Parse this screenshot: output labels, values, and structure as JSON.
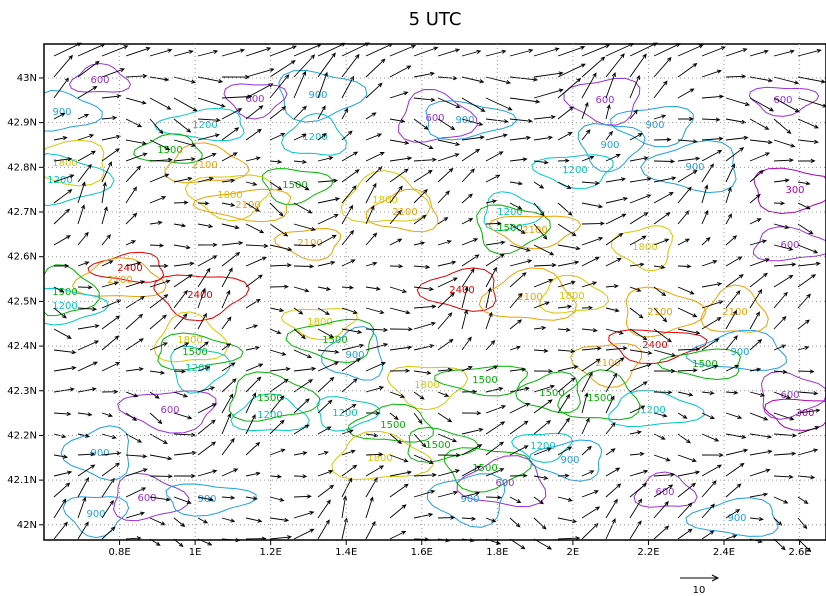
{
  "chart_data": {
    "type": "vector_map",
    "title": "5 UTC",
    "xlim": [
      0.6,
      2.67
    ],
    "ylim": [
      41.966,
      43.076
    ],
    "xticks": [
      {
        "value": 0.8,
        "label": "0.8E"
      },
      {
        "value": 1.0,
        "label": "1E"
      },
      {
        "value": 1.2,
        "label": "1.2E"
      },
      {
        "value": 1.4,
        "label": "1.4E"
      },
      {
        "value": 1.6,
        "label": "1.6E"
      },
      {
        "value": 1.8,
        "label": "1.8E"
      },
      {
        "value": 2.0,
        "label": "2E"
      },
      {
        "value": 2.2,
        "label": "2.2E"
      },
      {
        "value": 2.4,
        "label": "2.4E"
      },
      {
        "value": 2.6,
        "label": "2.6E"
      }
    ],
    "yticks": [
      {
        "value": 42.0,
        "label": "42N"
      },
      {
        "value": 42.1,
        "label": "42.1N"
      },
      {
        "value": 42.2,
        "label": "42.2N"
      },
      {
        "value": 42.3,
        "label": "42.3N"
      },
      {
        "value": 42.4,
        "label": "42.4N"
      },
      {
        "value": 42.5,
        "label": "42.5N"
      },
      {
        "value": 42.6,
        "label": "42.6N"
      },
      {
        "value": 42.7,
        "label": "42.7N"
      },
      {
        "value": 42.8,
        "label": "42.8N"
      },
      {
        "value": 42.9,
        "label": "42.9N"
      },
      {
        "value": 43.0,
        "label": "43N"
      }
    ],
    "grid": true,
    "contour_levels": [
      {
        "value": 300,
        "color": "#b000b0"
      },
      {
        "value": 600,
        "color": "#9a30d8"
      },
      {
        "value": 900,
        "color": "#1ea0e6"
      },
      {
        "value": 1200,
        "color": "#00c8c8"
      },
      {
        "value": 1500,
        "color": "#00b400"
      },
      {
        "value": 1800,
        "color": "#d8c800"
      },
      {
        "value": 2100,
        "color": "#f0a000"
      },
      {
        "value": 2400,
        "color": "#e00000"
      }
    ],
    "contour_labels": [
      600,
      900,
      900,
      600,
      600,
      1200,
      1200,
      600,
      900,
      900,
      1200,
      1800,
      1500,
      2100,
      1200,
      1500,
      1800,
      2100,
      2100,
      1800,
      1200,
      1500,
      2100,
      1800,
      2400,
      2100,
      1500,
      1200,
      2400,
      2100,
      2400,
      2100,
      1800,
      2100,
      2400,
      2100,
      1500,
      900,
      1800,
      1500,
      1200,
      1800,
      1500,
      900,
      1200,
      1500,
      1200,
      1800,
      1500,
      1500,
      1500,
      1200,
      600,
      300,
      600,
      900,
      1500,
      1800,
      1500,
      1500,
      1200,
      900,
      600,
      600,
      600,
      900,
      900,
      900,
      900,
      2100,
      600,
      300,
      600,
      900,
      900
    ],
    "reference_vector": 10
  }
}
